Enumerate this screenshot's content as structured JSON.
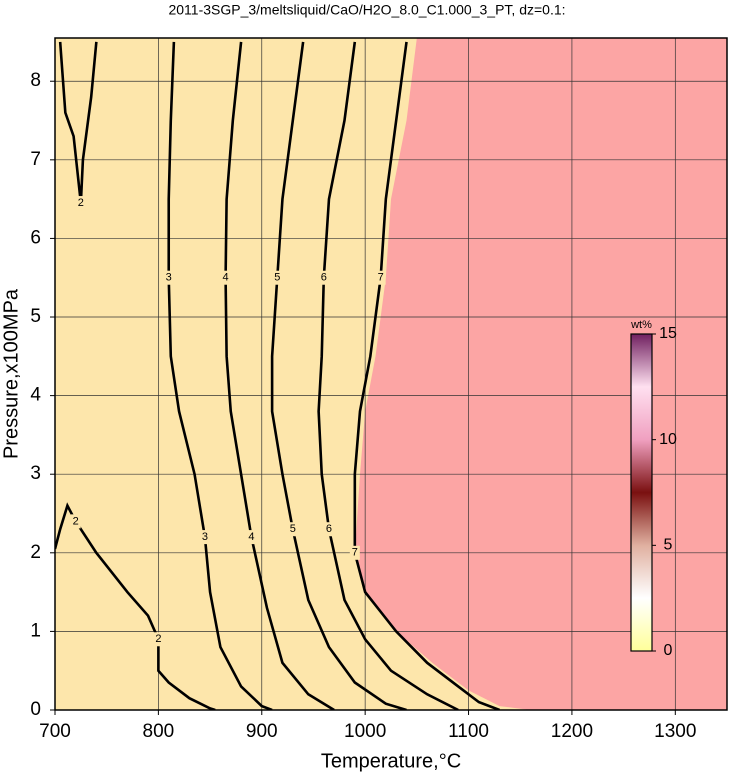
{
  "chart_data": {
    "type": "contour",
    "title": "2011-3SGP_3/meltsliquid/CaO/H2O_8.0_C1.000_3_PT, dz=0.1:",
    "x_label": "Temperature,°C",
    "y_label": "Pressure,x100MPa",
    "xlim": [
      700,
      1350
    ],
    "ylim": [
      0,
      8.55
    ],
    "xticks": [
      700,
      800,
      900,
      1000,
      1100,
      1200,
      1300
    ],
    "yticks": [
      0,
      1,
      2,
      3,
      4,
      5,
      6,
      7,
      8
    ],
    "grid": true,
    "background_color": "#fde6ab",
    "saturated_region": {
      "color": "#fca5a4",
      "x": [
        1050,
        1040,
        1025,
        1020,
        1010,
        1000,
        995,
        990,
        1000,
        1030,
        1065,
        1100,
        1130,
        1160
      ],
      "y": [
        8.55,
        7.5,
        6.5,
        5.5,
        4.5,
        3.8,
        3.0,
        2.0,
        1.5,
        1.0,
        0.6,
        0.25,
        0.05,
        0
      ]
    },
    "contours": [
      {
        "level": 2,
        "x": [
          700,
          705,
          712,
          720,
          740,
          770,
          790,
          800,
          800,
          810,
          830,
          850,
          855
        ],
        "y": [
          2.05,
          2.3,
          2.6,
          2.4,
          2.0,
          1.5,
          1.2,
          0.9,
          0.5,
          0.35,
          0.15,
          0.02,
          0
        ]
      },
      {
        "level": 2,
        "x": [
          705,
          710,
          718,
          725,
          727,
          735,
          740
        ],
        "y": [
          8.5,
          7.6,
          7.3,
          6.45,
          7.0,
          7.8,
          8.5
        ]
      },
      {
        "level": 3,
        "x": [
          815,
          812,
          810,
          810,
          812,
          820,
          835,
          845,
          850,
          860,
          880,
          900,
          910
        ],
        "y": [
          8.5,
          7.5,
          6.5,
          5.5,
          4.5,
          3.8,
          3.0,
          2.2,
          1.5,
          0.8,
          0.3,
          0.05,
          0
        ]
      },
      {
        "level": 4,
        "x": [
          880,
          872,
          866,
          865,
          866,
          870,
          880,
          890,
          905,
          920,
          945,
          970
        ],
        "y": [
          8.5,
          7.5,
          6.5,
          5.5,
          4.5,
          3.8,
          3.0,
          2.2,
          1.3,
          0.6,
          0.2,
          0
        ]
      },
      {
        "level": 5,
        "x": [
          940,
          930,
          920,
          915,
          910,
          910,
          920,
          930,
          945,
          965,
          990,
          1020,
          1040
        ],
        "y": [
          8.5,
          7.5,
          6.5,
          5.5,
          4.5,
          3.8,
          3.0,
          2.3,
          1.4,
          0.8,
          0.35,
          0.08,
          0
        ]
      },
      {
        "level": 6,
        "x": [
          990,
          980,
          965,
          960,
          958,
          955,
          958,
          965,
          980,
          1000,
          1025,
          1060,
          1090
        ],
        "y": [
          8.5,
          7.5,
          6.5,
          5.5,
          4.5,
          3.8,
          3.0,
          2.3,
          1.4,
          0.9,
          0.5,
          0.2,
          0
        ]
      },
      {
        "level": 7,
        "x": [
          1040,
          1030,
          1020,
          1015,
          1005,
          995,
          990,
          990,
          1000,
          1030,
          1060,
          1090,
          1110,
          1130
        ],
        "y": [
          8.5,
          7.5,
          6.5,
          5.5,
          4.5,
          3.8,
          3.0,
          2.0,
          1.5,
          1.0,
          0.6,
          0.3,
          0.1,
          0
        ]
      }
    ],
    "colorbar": {
      "label": "wt%",
      "lim": [
        0,
        15
      ],
      "ticks": [
        0,
        5,
        10,
        15
      ],
      "colors": [
        "#ffff99",
        "#ffffff",
        "#e0b0a0",
        "#7a1010",
        "#f0a0c0",
        "#ffe0f0",
        "#702060"
      ]
    }
  }
}
